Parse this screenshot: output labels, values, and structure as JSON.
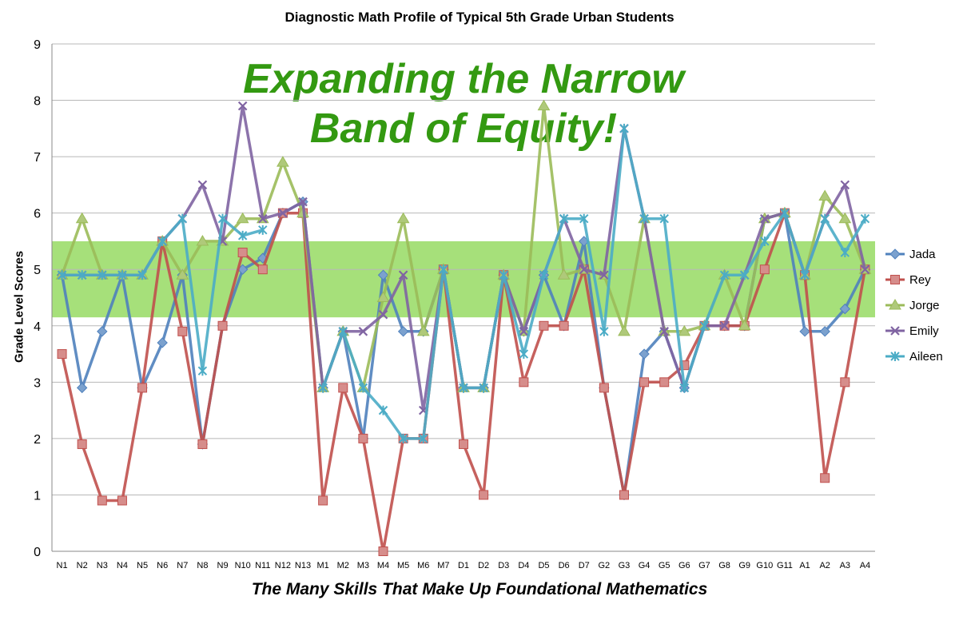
{
  "chart_data": {
    "type": "line",
    "title": "Diagnostic Math Profile of Typical 5th Grade Urban Students",
    "annotation": [
      "Expanding the Narrow",
      "Band of Equity!"
    ],
    "xlabel": "The Many Skills That Make Up Foundational Mathematics",
    "ylabel": "Grade Level Scores",
    "ylim": [
      0,
      9
    ],
    "yticks": [
      0,
      1,
      2,
      3,
      4,
      5,
      6,
      7,
      8,
      9
    ],
    "grid": true,
    "legend_position": "right",
    "band": {
      "from": 4.15,
      "to": 5.5,
      "color": "#a6e07a"
    },
    "categories": [
      "N1",
      "N2",
      "N3",
      "N4",
      "N5",
      "N6",
      "N7",
      "N8",
      "N9",
      "N10",
      "N11",
      "N12",
      "N13",
      "M1",
      "M2",
      "M3",
      "M4",
      "M5",
      "M6",
      "M7",
      "D1",
      "D2",
      "D3",
      "D4",
      "D5",
      "D6",
      "D7",
      "G2",
      "G3",
      "G4",
      "G5",
      "G6",
      "G7",
      "G8",
      "G9",
      "G10",
      "G11",
      "A1",
      "A2",
      "A3",
      "A4"
    ],
    "series": [
      {
        "name": "Jada",
        "color": "#4f81bd",
        "marker": "diamond",
        "values": [
          4.9,
          2.9,
          3.9,
          4.9,
          2.9,
          3.7,
          4.9,
          1.9,
          4.0,
          5.0,
          5.2,
          6.0,
          6.2,
          2.9,
          3.9,
          2.0,
          4.9,
          3.9,
          3.9,
          5.0,
          2.9,
          2.9,
          4.9,
          3.9,
          4.9,
          4.0,
          5.5,
          2.9,
          1.0,
          3.5,
          3.9,
          2.9,
          4.0,
          4.0,
          4.0,
          5.9,
          6.0,
          3.9,
          3.9,
          4.3,
          5.0
        ]
      },
      {
        "name": "Rey",
        "color": "#c0504d",
        "marker": "square",
        "values": [
          3.5,
          1.9,
          0.9,
          0.9,
          2.9,
          5.5,
          3.9,
          1.9,
          4.0,
          5.3,
          5.0,
          6.0,
          6.0,
          0.9,
          2.9,
          2.0,
          0.0,
          2.0,
          2.0,
          5.0,
          1.9,
          1.0,
          4.9,
          3.0,
          4.0,
          4.0,
          5.0,
          2.9,
          1.0,
          3.0,
          3.0,
          3.3,
          4.0,
          4.0,
          4.0,
          5.0,
          6.0,
          4.9,
          1.3,
          3.0,
          5.0
        ]
      },
      {
        "name": "Jorge",
        "color": "#9bbb59",
        "marker": "triangle",
        "values": [
          4.9,
          5.9,
          4.9,
          4.9,
          4.9,
          5.5,
          4.9,
          5.5,
          5.5,
          5.9,
          5.9,
          6.9,
          6.0,
          2.9,
          3.9,
          2.9,
          4.5,
          5.9,
          3.9,
          5.0,
          2.9,
          2.9,
          4.9,
          3.9,
          7.9,
          4.9,
          5.0,
          4.9,
          3.9,
          5.9,
          3.9,
          3.9,
          4.0,
          4.9,
          4.0,
          5.9,
          6.0,
          4.9,
          6.3,
          5.9,
          5.0
        ]
      },
      {
        "name": "Emily",
        "color": "#8064a2",
        "marker": "x",
        "values": [
          4.9,
          4.9,
          4.9,
          4.9,
          4.9,
          5.5,
          5.9,
          6.5,
          5.5,
          7.9,
          5.9,
          6.0,
          6.2,
          2.9,
          3.9,
          3.9,
          4.2,
          4.9,
          2.5,
          5.0,
          2.9,
          2.9,
          4.9,
          3.9,
          4.9,
          5.9,
          5.0,
          4.9,
          7.5,
          5.9,
          3.9,
          2.9,
          4.0,
          4.0,
          4.9,
          5.9,
          6.0,
          4.9,
          5.9,
          6.5,
          5.0
        ]
      },
      {
        "name": "Aileen",
        "color": "#4bacc6",
        "marker": "star",
        "values": [
          4.9,
          4.9,
          4.9,
          4.9,
          4.9,
          5.5,
          5.9,
          3.2,
          5.9,
          5.6,
          5.7,
          null,
          null,
          2.9,
          3.9,
          2.9,
          2.5,
          2.0,
          2.0,
          5.0,
          2.9,
          2.9,
          4.9,
          3.5,
          4.9,
          5.9,
          5.9,
          3.9,
          7.5,
          5.9,
          5.9,
          2.9,
          4.0,
          4.9,
          4.9,
          5.5,
          6.0,
          4.9,
          5.9,
          5.3,
          5.9
        ]
      }
    ]
  }
}
